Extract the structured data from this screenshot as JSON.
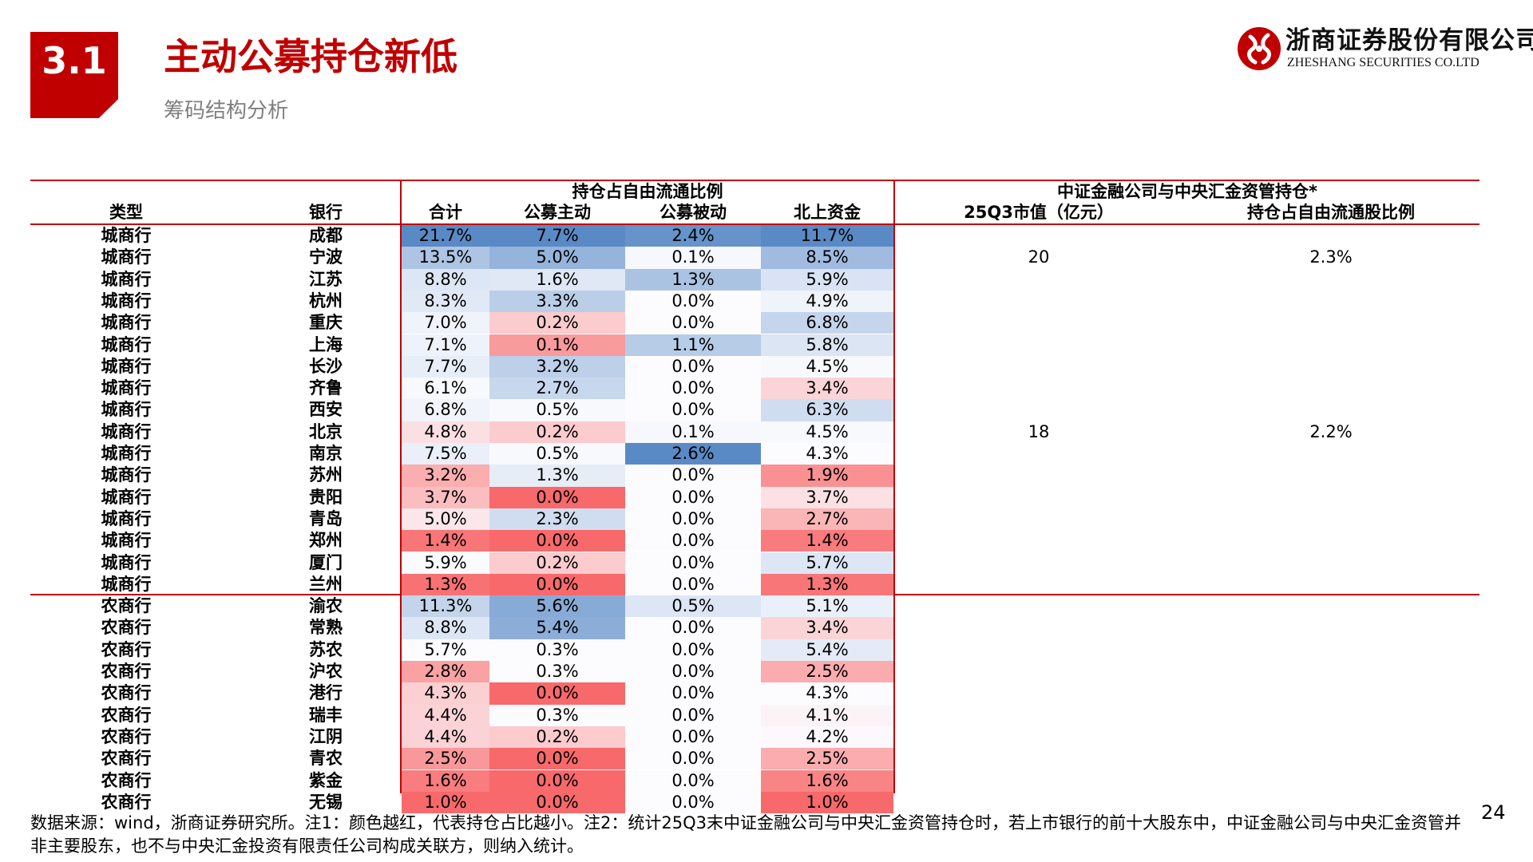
{
  "header": {
    "section_number": "3.1",
    "title": "主动公募持仓新低",
    "subtitle": "筹码结构分析",
    "logo_cn": "浙商证券股份有限公司",
    "logo_en": "ZHESHANG SECURITIES CO.LTD"
  },
  "table": {
    "group_header_holding": "持仓占自由流通比例",
    "group_header_csf": "中证金融公司与中央汇金资管持仓*",
    "col_type": "类型",
    "col_bank": "银行",
    "col_total": "合计",
    "col_active": "公募主动",
    "col_passive": "公募被动",
    "col_north": "北上资金",
    "col_mv": "25Q3市值（亿元）",
    "col_ratio": "持仓占自由流通股比例",
    "rows": [
      {
        "type": "城商行",
        "bank": "成都",
        "total": "21.7%",
        "active": "7.7%",
        "passive": "2.4%",
        "north": "11.7%",
        "mv": "",
        "ratio": ""
      },
      {
        "type": "城商行",
        "bank": "宁波",
        "total": "13.5%",
        "active": "5.0%",
        "passive": "0.1%",
        "north": "8.5%",
        "mv": "20",
        "ratio": "2.3%"
      },
      {
        "type": "城商行",
        "bank": "江苏",
        "total": "8.8%",
        "active": "1.6%",
        "passive": "1.3%",
        "north": "5.9%",
        "mv": "",
        "ratio": ""
      },
      {
        "type": "城商行",
        "bank": "杭州",
        "total": "8.3%",
        "active": "3.3%",
        "passive": "0.0%",
        "north": "4.9%",
        "mv": "",
        "ratio": ""
      },
      {
        "type": "城商行",
        "bank": "重庆",
        "total": "7.0%",
        "active": "0.2%",
        "passive": "0.0%",
        "north": "6.8%",
        "mv": "",
        "ratio": ""
      },
      {
        "type": "城商行",
        "bank": "上海",
        "total": "7.1%",
        "active": "0.1%",
        "passive": "1.1%",
        "north": "5.8%",
        "mv": "",
        "ratio": ""
      },
      {
        "type": "城商行",
        "bank": "长沙",
        "total": "7.7%",
        "active": "3.2%",
        "passive": "0.0%",
        "north": "4.5%",
        "mv": "",
        "ratio": ""
      },
      {
        "type": "城商行",
        "bank": "齐鲁",
        "total": "6.1%",
        "active": "2.7%",
        "passive": "0.0%",
        "north": "3.4%",
        "mv": "",
        "ratio": ""
      },
      {
        "type": "城商行",
        "bank": "西安",
        "total": "6.8%",
        "active": "0.5%",
        "passive": "0.0%",
        "north": "6.3%",
        "mv": "",
        "ratio": ""
      },
      {
        "type": "城商行",
        "bank": "北京",
        "total": "4.8%",
        "active": "0.2%",
        "passive": "0.1%",
        "north": "4.5%",
        "mv": "18",
        "ratio": "2.2%"
      },
      {
        "type": "城商行",
        "bank": "南京",
        "total": "7.5%",
        "active": "0.5%",
        "passive": "2.6%",
        "north": "4.3%",
        "mv": "",
        "ratio": ""
      },
      {
        "type": "城商行",
        "bank": "苏州",
        "total": "3.2%",
        "active": "1.3%",
        "passive": "0.0%",
        "north": "1.9%",
        "mv": "",
        "ratio": ""
      },
      {
        "type": "城商行",
        "bank": "贵阳",
        "total": "3.7%",
        "active": "0.0%",
        "passive": "0.0%",
        "north": "3.7%",
        "mv": "",
        "ratio": ""
      },
      {
        "type": "城商行",
        "bank": "青岛",
        "total": "5.0%",
        "active": "2.3%",
        "passive": "0.0%",
        "north": "2.7%",
        "mv": "",
        "ratio": ""
      },
      {
        "type": "城商行",
        "bank": "郑州",
        "total": "1.4%",
        "active": "0.0%",
        "passive": "0.0%",
        "north": "1.4%",
        "mv": "",
        "ratio": ""
      },
      {
        "type": "城商行",
        "bank": "厦门",
        "total": "5.9%",
        "active": "0.2%",
        "passive": "0.0%",
        "north": "5.7%",
        "mv": "",
        "ratio": ""
      },
      {
        "type": "城商行",
        "bank": "兰州",
        "total": "1.3%",
        "active": "0.0%",
        "passive": "0.0%",
        "north": "1.3%",
        "mv": "",
        "ratio": ""
      },
      {
        "type": "农商行",
        "bank": "渝农",
        "total": "11.3%",
        "active": "5.6%",
        "passive": "0.5%",
        "north": "5.1%",
        "mv": "",
        "ratio": ""
      },
      {
        "type": "农商行",
        "bank": "常熟",
        "total": "8.8%",
        "active": "5.4%",
        "passive": "0.0%",
        "north": "3.4%",
        "mv": "",
        "ratio": ""
      },
      {
        "type": "农商行",
        "bank": "苏农",
        "total": "5.7%",
        "active": "0.3%",
        "passive": "0.0%",
        "north": "5.4%",
        "mv": "",
        "ratio": ""
      },
      {
        "type": "农商行",
        "bank": "沪农",
        "total": "2.8%",
        "active": "0.3%",
        "passive": "0.0%",
        "north": "2.5%",
        "mv": "",
        "ratio": ""
      },
      {
        "type": "农商行",
        "bank": "港行",
        "total": "4.3%",
        "active": "0.0%",
        "passive": "0.0%",
        "north": "4.3%",
        "mv": "",
        "ratio": ""
      },
      {
        "type": "农商行",
        "bank": "瑞丰",
        "total": "4.4%",
        "active": "0.3%",
        "passive": "0.0%",
        "north": "4.1%",
        "mv": "",
        "ratio": ""
      },
      {
        "type": "农商行",
        "bank": "江阴",
        "total": "4.4%",
        "active": "0.2%",
        "passive": "0.0%",
        "north": "4.2%",
        "mv": "",
        "ratio": ""
      },
      {
        "type": "农商行",
        "bank": "青农",
        "total": "2.5%",
        "active": "0.0%",
        "passive": "0.0%",
        "north": "2.5%",
        "mv": "",
        "ratio": ""
      },
      {
        "type": "农商行",
        "bank": "紫金",
        "total": "1.6%",
        "active": "0.0%",
        "passive": "0.0%",
        "north": "1.6%",
        "mv": "",
        "ratio": ""
      },
      {
        "type": "农商行",
        "bank": "无锡",
        "total": "1.0%",
        "active": "0.0%",
        "passive": "0.0%",
        "north": "1.0%",
        "mv": "",
        "ratio": ""
      }
    ]
  },
  "footnote": "数据来源：wind，浙商证券研究所。注1：颜色越红，代表持仓占比越小。注2：统计25Q3末中证金融公司与中央汇金资管持仓时，若上市银行的前十大股东中，中证金融公司与中央汇金资管并非主要股东，也不与中央汇金投资有限责任公司构成关联方，则纳入统计。",
  "page_number": "24",
  "colors": {
    "accent": "#c00000",
    "low": "#f8696b",
    "mid": "#fcfcff",
    "high": "#5a8ac6"
  }
}
